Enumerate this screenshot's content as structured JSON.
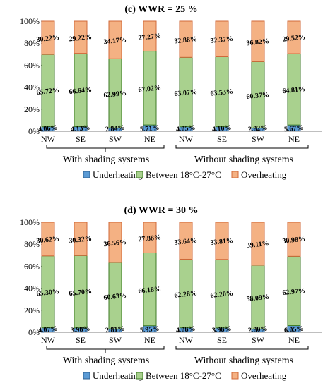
{
  "colors": {
    "underheating": "#5b9bd5",
    "underheating_edge": "#2e5f8f",
    "between": "#a9d18e",
    "between_edge": "#3d7a24",
    "overheating": "#f4b183",
    "overheating_edge": "#d0693a",
    "axis": "#7f7f7f"
  },
  "legend": {
    "items": [
      "Underheating",
      "Between 18°C-27°C",
      "Overheating"
    ]
  },
  "chart_data": [
    {
      "type": "bar",
      "stacked": true,
      "title": "(c) WWR = 25 %",
      "categories": [
        "NW",
        "SE",
        "SW",
        "NE",
        "NW",
        "SE",
        "SW",
        "NE"
      ],
      "groups": [
        "With shading systems",
        "Without shading systems"
      ],
      "ylim": [
        0,
        100
      ],
      "yticks": [
        "0%",
        "20%",
        "40%",
        "60%",
        "80%",
        "100%"
      ],
      "series": [
        {
          "name": "Underheating",
          "values": [
            4.06,
            4.13,
            2.84,
            5.71,
            4.05,
            4.1,
            2.82,
            5.67
          ],
          "labels": [
            "4.06%",
            "4.13%",
            "2.84%",
            "5.71%",
            "4.05%",
            "4.10%",
            "2.82%",
            "5.67%"
          ]
        },
        {
          "name": "Between 18°C-27°C",
          "values": [
            65.72,
            66.64,
            62.99,
            67.02,
            63.07,
            63.53,
            60.37,
            64.81
          ],
          "labels": [
            "65.72%",
            "66.64%",
            "62.99%",
            "67.02%",
            "63.07%",
            "63.53%",
            "60.37%",
            "64.81%"
          ]
        },
        {
          "name": "Overheating",
          "values": [
            30.22,
            29.22,
            34.17,
            27.27,
            32.88,
            32.37,
            36.82,
            29.52
          ],
          "labels": [
            "30.22%",
            "29.22%",
            "34.17%",
            "27.27%",
            "32.88%",
            "32.37%",
            "36.82%",
            "29.52%"
          ]
        }
      ]
    },
    {
      "type": "bar",
      "stacked": true,
      "title": "(d) WWR = 30 %",
      "categories": [
        "NW",
        "SE",
        "SW",
        "NE",
        "NW",
        "SE",
        "SW",
        "NE"
      ],
      "groups": [
        "With shading systems",
        "Without shading systems"
      ],
      "ylim": [
        0,
        100
      ],
      "yticks": [
        "0%",
        "20%",
        "40%",
        "60%",
        "80%",
        "100%"
      ],
      "series": [
        {
          "name": "Underheating",
          "values": [
            4.07,
            3.98,
            2.81,
            5.95,
            4.08,
            3.98,
            2.8,
            6.05
          ],
          "labels": [
            "4.07%",
            "3.98%",
            "2.81%",
            "5.95%",
            "4.08%",
            "3.98%",
            "2.80%",
            "6.05%"
          ]
        },
        {
          "name": "Between 18°C-27°C",
          "values": [
            65.3,
            65.7,
            60.63,
            66.18,
            62.28,
            62.2,
            58.09,
            62.97
          ],
          "labels": [
            "65.30%",
            "65.70%",
            "60.63%",
            "66.18%",
            "62.28%",
            "62.20%",
            "58.09%",
            "62.97%"
          ]
        },
        {
          "name": "Overheating",
          "values": [
            30.62,
            30.32,
            36.56,
            27.88,
            33.64,
            33.81,
            39.11,
            30.98
          ],
          "labels": [
            "30.62%",
            "30.32%",
            "36.56%",
            "27.88%",
            "33.64%",
            "33.81%",
            "39.11%",
            "30.98%"
          ]
        }
      ]
    }
  ]
}
